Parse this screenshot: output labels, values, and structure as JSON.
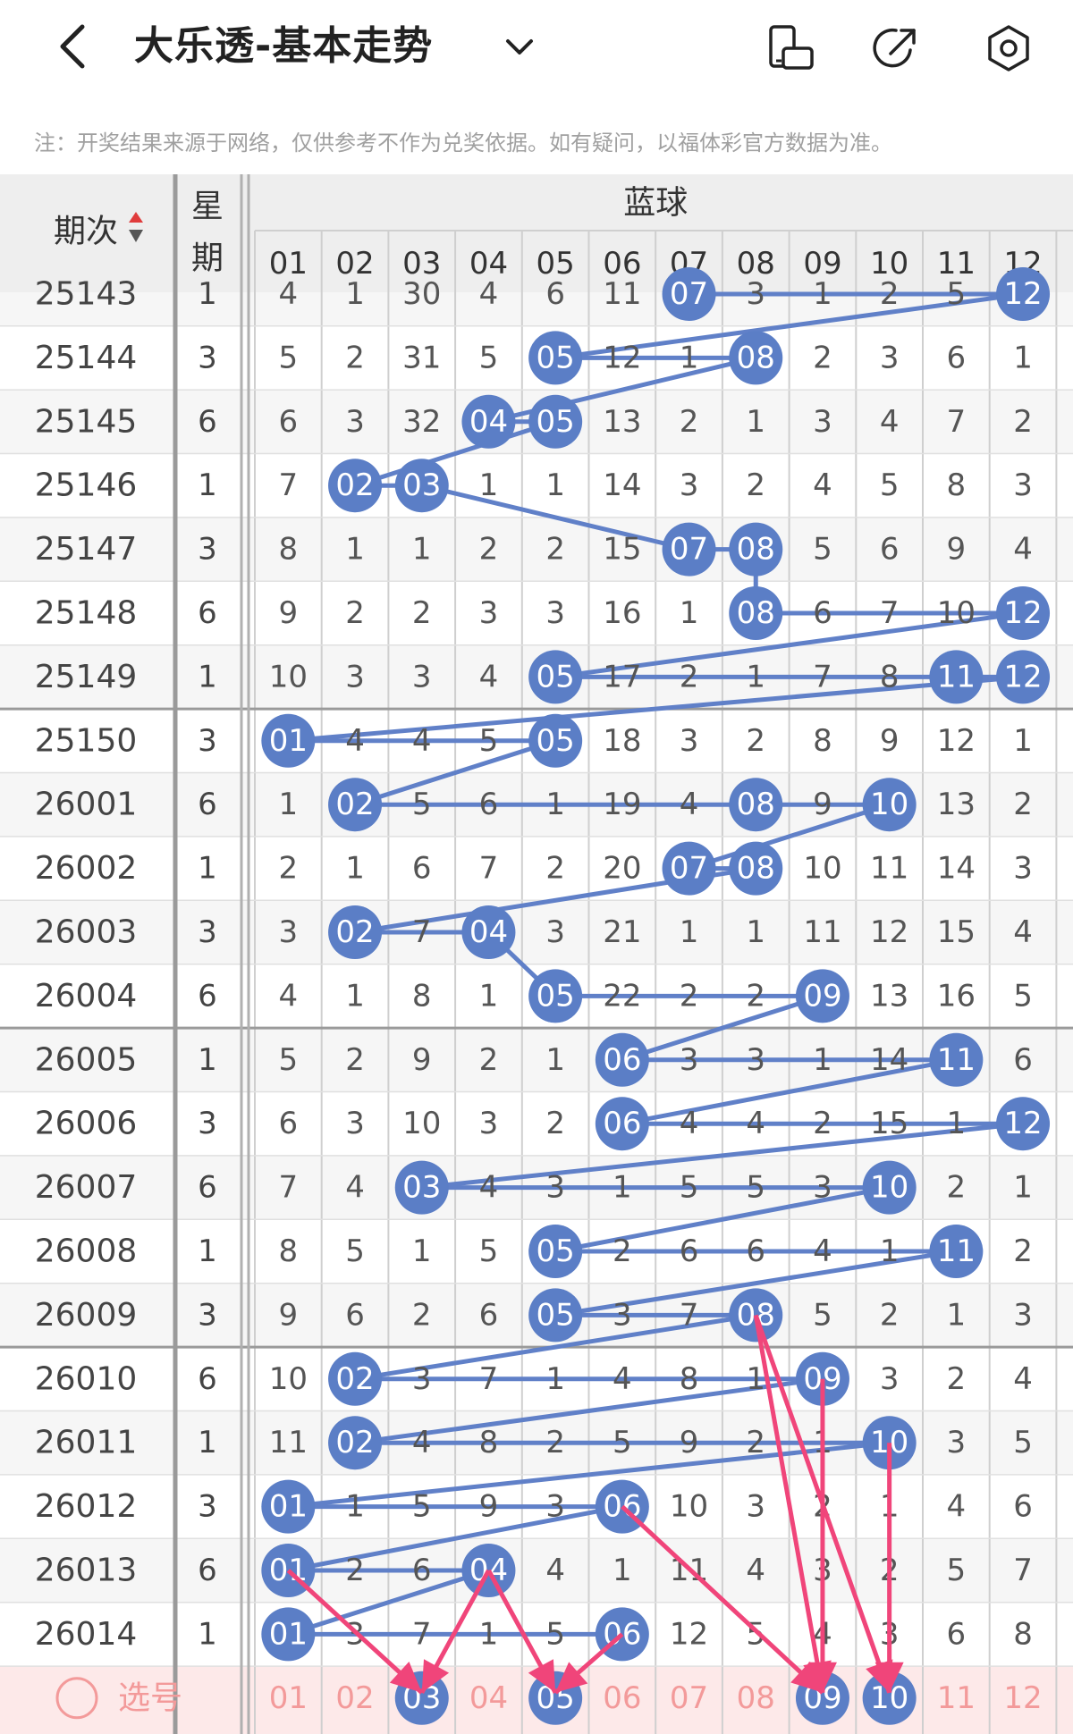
{
  "header": {
    "title": "大乐透-基本走势",
    "back_icon": "chevron-left-icon",
    "dropdown_icon": "chevron-down-icon",
    "icons": [
      "phone-rotate-icon",
      "share-icon",
      "settings-icon"
    ]
  },
  "note": "注：开奖结果来源于网络，仅供参考不作为兑奖依据。如有疑问，以福体彩官方数据为准。",
  "table": {
    "col_issue": "期次",
    "col_week": "星期",
    "section": "蓝球",
    "numbers": [
      "01",
      "02",
      "03",
      "04",
      "05",
      "06",
      "07",
      "08",
      "09",
      "10",
      "11",
      "12"
    ],
    "colors": {
      "ball": "#5b7ec6",
      "line": "#6080c8",
      "arrow": "#f0457a",
      "pick_row": "#fde9e9",
      "pick_text": "#f39a9a",
      "header_bg": "#eeeeee"
    },
    "rows": [
      {
        "issue": "25143",
        "week": "1",
        "cells": [
          "4",
          "1",
          "30",
          "4",
          "6",
          "11",
          "07",
          "3",
          "1",
          "2",
          "5",
          "12"
        ]
      },
      {
        "issue": "25144",
        "week": "3",
        "cells": [
          "5",
          "2",
          "31",
          "5",
          "05",
          "12",
          "1",
          "08",
          "2",
          "3",
          "6",
          "1"
        ]
      },
      {
        "issue": "25145",
        "week": "6",
        "cells": [
          "6",
          "3",
          "32",
          "04",
          "05",
          "13",
          "2",
          "1",
          "3",
          "4",
          "7",
          "2"
        ]
      },
      {
        "issue": "25146",
        "week": "1",
        "cells": [
          "7",
          "02",
          "03",
          "1",
          "1",
          "14",
          "3",
          "2",
          "4",
          "5",
          "8",
          "3"
        ]
      },
      {
        "issue": "25147",
        "week": "3",
        "cells": [
          "8",
          "1",
          "1",
          "2",
          "2",
          "15",
          "07",
          "08",
          "5",
          "6",
          "9",
          "4"
        ]
      },
      {
        "issue": "25148",
        "week": "6",
        "cells": [
          "9",
          "2",
          "2",
          "3",
          "3",
          "16",
          "1",
          "08",
          "6",
          "7",
          "10",
          "12"
        ]
      },
      {
        "issue": "25149",
        "week": "1",
        "cells": [
          "10",
          "3",
          "3",
          "4",
          "05",
          "17",
          "2",
          "1",
          "7",
          "8",
          "11",
          "12"
        ]
      },
      {
        "issue": "25150",
        "week": "3",
        "cells": [
          "01",
          "4",
          "4",
          "5",
          "05",
          "18",
          "3",
          "2",
          "8",
          "9",
          "12",
          "1"
        ]
      },
      {
        "issue": "26001",
        "week": "6",
        "cells": [
          "1",
          "02",
          "5",
          "6",
          "1",
          "19",
          "4",
          "08",
          "9",
          "10",
          "13",
          "2"
        ]
      },
      {
        "issue": "26002",
        "week": "1",
        "cells": [
          "2",
          "1",
          "6",
          "7",
          "2",
          "20",
          "07",
          "08",
          "10",
          "11",
          "14",
          "3"
        ]
      },
      {
        "issue": "26003",
        "week": "3",
        "cells": [
          "3",
          "02",
          "7",
          "04",
          "3",
          "21",
          "1",
          "1",
          "11",
          "12",
          "15",
          "4"
        ]
      },
      {
        "issue": "26004",
        "week": "6",
        "cells": [
          "4",
          "1",
          "8",
          "1",
          "05",
          "22",
          "2",
          "2",
          "09",
          "13",
          "16",
          "5"
        ]
      },
      {
        "issue": "26005",
        "week": "1",
        "cells": [
          "5",
          "2",
          "9",
          "2",
          "1",
          "06",
          "3",
          "3",
          "1",
          "14",
          "11",
          "6"
        ]
      },
      {
        "issue": "26006",
        "week": "3",
        "cells": [
          "6",
          "3",
          "10",
          "3",
          "2",
          "06",
          "4",
          "4",
          "2",
          "15",
          "1",
          "12"
        ]
      },
      {
        "issue": "26007",
        "week": "6",
        "cells": [
          "7",
          "4",
          "03",
          "4",
          "3",
          "1",
          "5",
          "5",
          "3",
          "10",
          "2",
          "1"
        ]
      },
      {
        "issue": "26008",
        "week": "1",
        "cells": [
          "8",
          "5",
          "1",
          "5",
          "05",
          "2",
          "6",
          "6",
          "4",
          "1",
          "11",
          "2"
        ]
      },
      {
        "issue": "26009",
        "week": "3",
        "cells": [
          "9",
          "6",
          "2",
          "6",
          "05",
          "3",
          "7",
          "08",
          "5",
          "2",
          "1",
          "3"
        ]
      },
      {
        "issue": "26010",
        "week": "6",
        "cells": [
          "10",
          "02",
          "3",
          "7",
          "1",
          "4",
          "8",
          "1",
          "09",
          "3",
          "2",
          "4"
        ]
      },
      {
        "issue": "26011",
        "week": "1",
        "cells": [
          "11",
          "02",
          "4",
          "8",
          "2",
          "5",
          "9",
          "2",
          "1",
          "10",
          "3",
          "5"
        ]
      },
      {
        "issue": "26012",
        "week": "3",
        "cells": [
          "01",
          "1",
          "5",
          "9",
          "3",
          "06",
          "10",
          "3",
          "2",
          "1",
          "4",
          "6"
        ]
      },
      {
        "issue": "26013",
        "week": "6",
        "cells": [
          "01",
          "2",
          "6",
          "04",
          "4",
          "1",
          "11",
          "4",
          "3",
          "2",
          "5",
          "7"
        ]
      },
      {
        "issue": "26014",
        "week": "1",
        "cells": [
          "01",
          "3",
          "7",
          "1",
          "5",
          "06",
          "12",
          "5",
          "4",
          "3",
          "6",
          "8"
        ]
      }
    ],
    "pick_row": {
      "label": "选号",
      "radio_icon": "radio-unchecked-icon",
      "selected": [
        "03",
        "05",
        "09",
        "10"
      ]
    }
  }
}
